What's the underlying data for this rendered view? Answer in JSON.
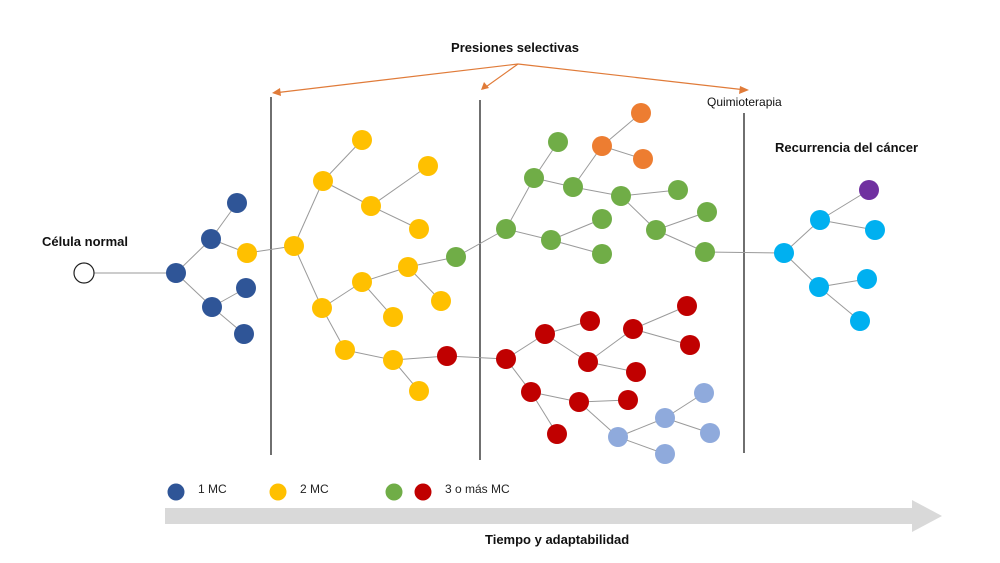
{
  "labels": {
    "selective_pressures": "Presiones selectivas",
    "normal_cell": "Célula normal",
    "chemotherapy": "Quimioterapia",
    "recurrence": "Recurrencia del cáncer",
    "time_axis": "Tiempo y adaptabilidad"
  },
  "legend": [
    {
      "label": "1 MC",
      "colors": [
        "#2f5597"
      ]
    },
    {
      "label": "2 MC",
      "colors": [
        "#ffc000"
      ]
    },
    {
      "label": "3 o más MC",
      "colors": [
        "#70ad47",
        "#c00000"
      ]
    }
  ],
  "colors": {
    "blue": "#2f5597",
    "yellow": "#ffc000",
    "green": "#70ad47",
    "red": "#c00000",
    "orange": "#ed7d31",
    "light_blue": "#8faadc",
    "cyan": "#00b0f0",
    "purple": "#7030a0",
    "arrow_orange": "#e07b39",
    "time_arrow": "#d9d9d9"
  }
}
